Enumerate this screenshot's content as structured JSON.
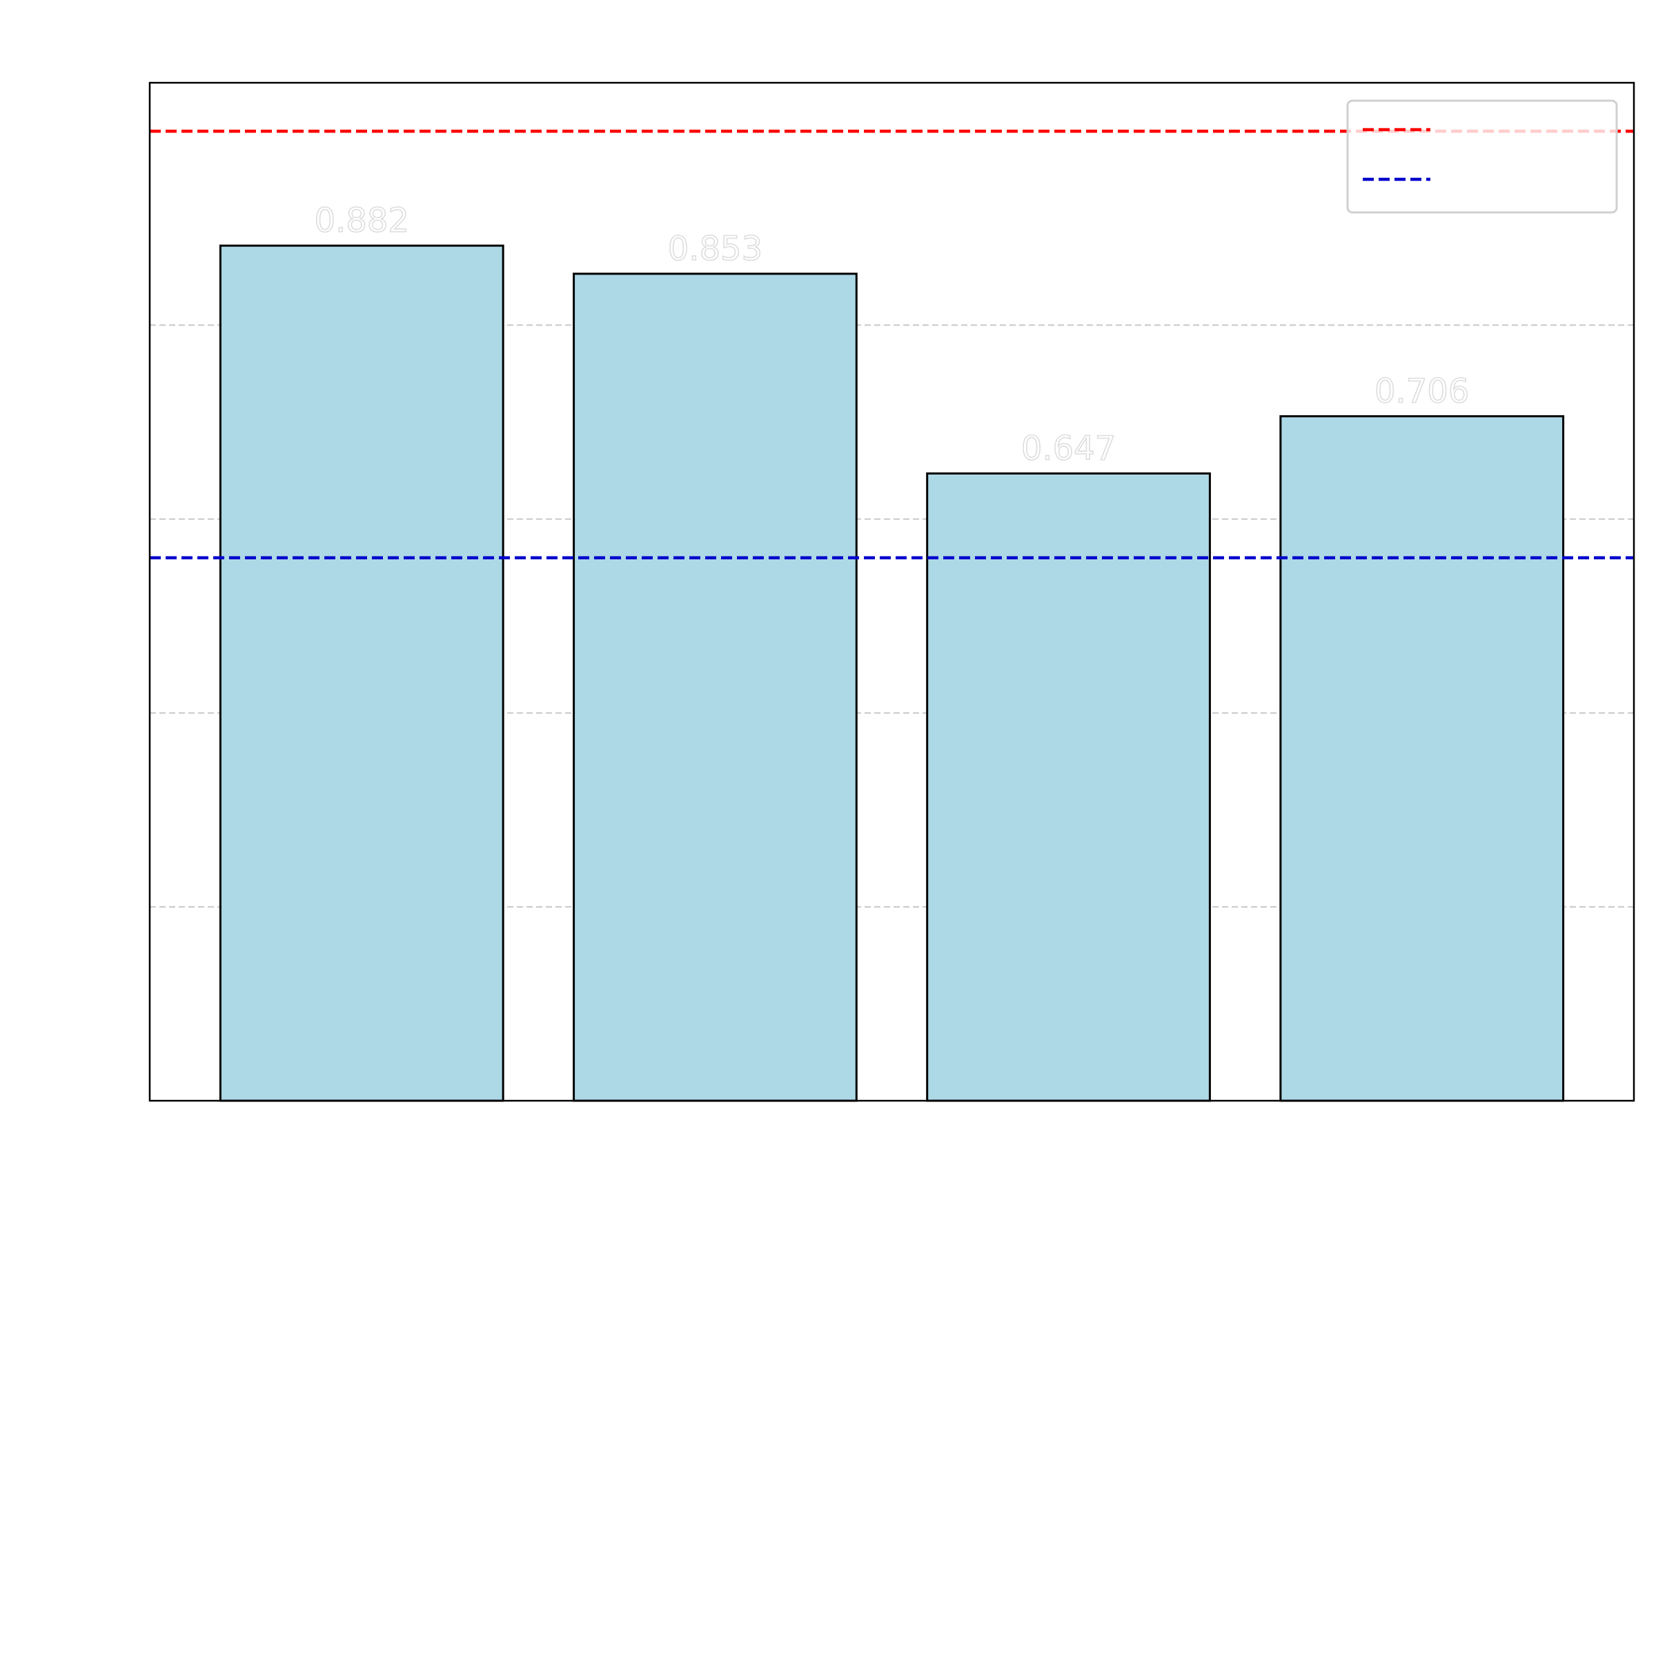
{
  "chart_data": {
    "type": "bar",
    "title": "",
    "xlabel": "",
    "ylabel": "",
    "ylim": [
      0,
      1.05
    ],
    "yticks": [
      0.2,
      0.4,
      0.6,
      0.8
    ],
    "grid": {
      "y": true,
      "style": "dashed"
    },
    "bar_color": "#add8e6",
    "bar_edge_color": "#000000",
    "value_labels": [
      "0.882",
      "0.853",
      "0.647",
      "0.706"
    ],
    "values": [
      0.882,
      0.853,
      0.647,
      0.706
    ],
    "reference_lines": [
      {
        "value": 1.0,
        "color": "#ff0000",
        "style": "dashed"
      },
      {
        "value": 0.56,
        "color": "#0000cc",
        "style": "dashed"
      }
    ],
    "legend": {
      "placement": "top-right",
      "entries": [
        {
          "color": "#ff0000",
          "style": "dashed",
          "label": ""
        },
        {
          "color": "#0000cc",
          "style": "dashed",
          "label": ""
        }
      ]
    },
    "value_label_color": "#dddddd"
  }
}
